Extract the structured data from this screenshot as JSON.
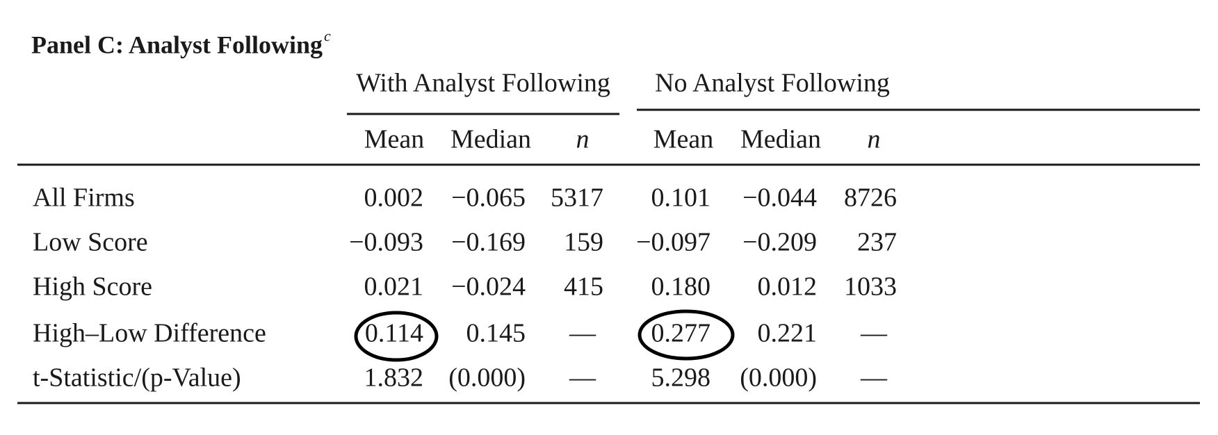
{
  "title": "Panel C: Analyst Following",
  "title_note": "c",
  "table": {
    "groups": [
      "With Analyst Following",
      "No Analyst Following"
    ],
    "columns": [
      "Mean",
      "Median",
      "n",
      "Mean",
      "Median",
      "n"
    ],
    "rows": [
      {
        "label": "All Firms",
        "cells": [
          "0.002",
          "−0.065",
          "5317",
          "0.101",
          "−0.044",
          "8726"
        ]
      },
      {
        "label": "Low Score",
        "cells": [
          "−0.093",
          "−0.169",
          "159",
          "−0.097",
          "−0.209",
          "237"
        ]
      },
      {
        "label": "High Score",
        "cells": [
          "0.021",
          "−0.024",
          "415",
          "0.180",
          "0.012",
          "1033"
        ]
      },
      {
        "label": "High–Low Difference",
        "cells": [
          "0.114",
          "0.145",
          "—",
          "0.277",
          "0.221",
          "—"
        ]
      },
      {
        "label": "t-Statistic/(p-Value)",
        "cells": [
          "1.832",
          "(0.000)",
          "—",
          "5.298",
          "(0.000)",
          "—"
        ]
      }
    ]
  }
}
